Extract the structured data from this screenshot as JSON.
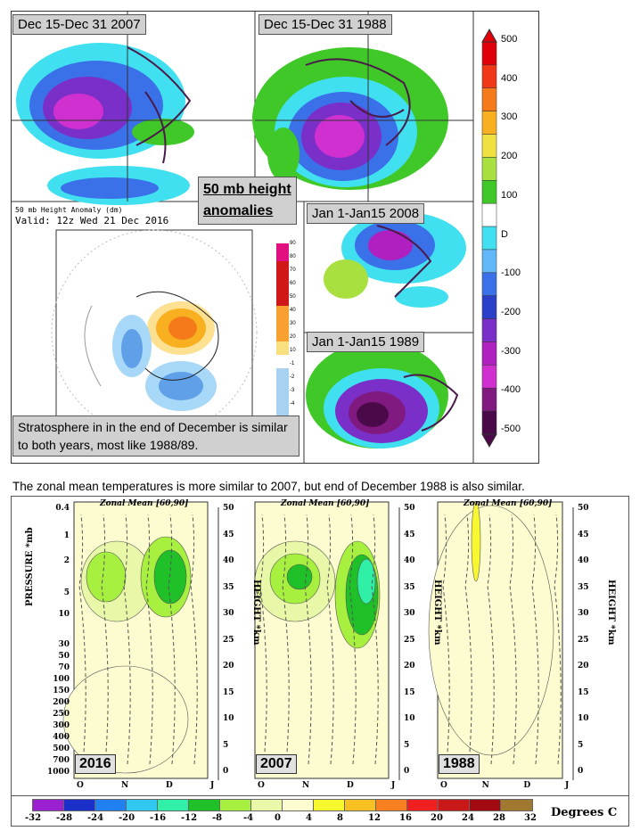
{
  "top_panel": {
    "labels": {
      "dec2007": "Dec 15-Dec 31  2007",
      "dec1988": "Dec 15-Dec 31  1988",
      "jan2008": "Jan 1-Jan15  2008",
      "jan1989": "Jan 1-Jan15  1989"
    },
    "title_line1": "50 mb height",
    "title_line2": "anomalies",
    "inset": {
      "line1": "50 mb Height Anomaly (dm)",
      "line2": "Valid: 12z Wed 21 Dec 2016",
      "scale": [
        "90",
        "80",
        "70",
        "60",
        "50",
        "40",
        "30",
        "20",
        "10",
        "-1",
        "-2",
        "-3",
        "-4"
      ]
    },
    "note": "Stratosphere in in the end of December is similar to both years, most like 1988/89.",
    "colorbar": {
      "labels": [
        "500",
        "400",
        "300",
        "200",
        "100",
        "D",
        "-100",
        "-200",
        "-300",
        "-400",
        "-500"
      ],
      "colors": [
        "#e0000a",
        "#f03818",
        "#f47a1a",
        "#f8b020",
        "#f0e040",
        "#a8e040",
        "#40c828",
        "#fff",
        "#40e0f0",
        "#60b8f8",
        "#3a70e8",
        "#2a40c8",
        "#7a30c8",
        "#b020c0",
        "#d030d0",
        "#801a80",
        "#4a0a4a"
      ]
    }
  },
  "caption": "The zonal mean temperatures is more similar to 2007, but end of December 1988 is also similar.",
  "zonal": {
    "title": "Zonal Mean [60,90]",
    "years": [
      "2016",
      "2007",
      "1988"
    ],
    "ylabel_left": "PRESSURE *mb",
    "ylabel_right": "HEIGHT *km",
    "pressure_ticks": [
      "0.4",
      "1",
      "2",
      "5",
      "10",
      "30",
      "50",
      "70",
      "100",
      "150",
      "200",
      "250",
      "300",
      "400",
      "500",
      "700",
      "1000"
    ],
    "height_ticks": [
      "50",
      "45",
      "40",
      "35",
      "30",
      "25",
      "20",
      "15",
      "10",
      "5",
      "0"
    ],
    "months": [
      "O",
      "N",
      "D",
      "J"
    ]
  },
  "bottom_colorbar": {
    "labels": [
      "-32",
      "-28",
      "-24",
      "-20",
      "-16",
      "-12",
      "-8",
      "-4",
      "0",
      "4",
      "8",
      "12",
      "16",
      "20",
      "24",
      "28",
      "32"
    ],
    "colors": [
      "#9a20d0",
      "#1a30c8",
      "#2080f0",
      "#30c8f0",
      "#30f0a8",
      "#20c028",
      "#a8f040",
      "#e8f8a8",
      "#fcfcd0",
      "#f8f830",
      "#f8c020",
      "#f88020",
      "#f02020",
      "#c81818",
      "#a00a10",
      "#a07830"
    ],
    "unit": "Degrees C"
  }
}
